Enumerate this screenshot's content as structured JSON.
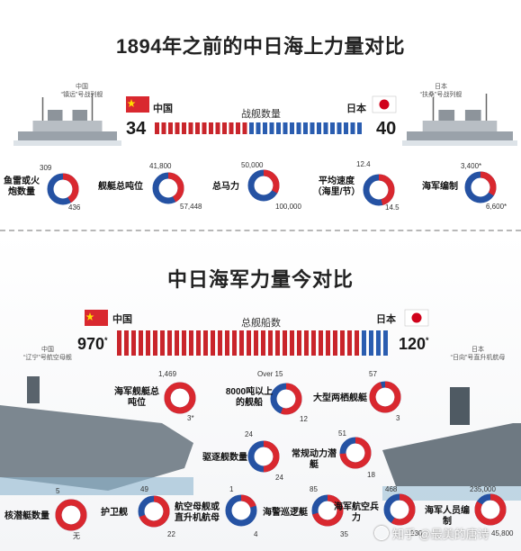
{
  "colors": {
    "china_red": "#d9282f",
    "japan_blue": "#2552a3",
    "bar_red": "#c9252b",
    "bar_blue": "#2a5db0"
  },
  "top_section": {
    "title": "1894年之前的中日海上力量对比",
    "china_ship_caption": [
      "中国",
      "“镇远”号战列舰"
    ],
    "japan_ship_caption": [
      "日本",
      "“扶桑”号战列舰"
    ],
    "china_label": "中国",
    "japan_label": "日本",
    "bar_title": "战舰数量",
    "china_count": "34",
    "japan_count": "40"
  },
  "bottom_section": {
    "title": "中日海军力量今对比",
    "china_ship_caption": [
      "中国",
      "“辽宁”号航空母舰"
    ],
    "japan_ship_caption": [
      "日本",
      "“日向”号直升机航母"
    ],
    "china_label": "中国",
    "japan_label": "日本",
    "bar_title": "总舰船数",
    "china_count": "970",
    "japan_count": "120",
    "china_mark": "*",
    "japan_mark": "*"
  },
  "watermark": "知乎 @最美的唐诗",
  "chart_data": [
    {
      "type": "bar",
      "title": "战舰数量",
      "categories": [
        "中国",
        "日本"
      ],
      "values": [
        34,
        40
      ]
    },
    {
      "type": "pie",
      "panel": "1894",
      "items": [
        {
          "label": "鱼雷或火炮数量",
          "china": 309,
          "japan": 436,
          "china_text": "309",
          "japan_text": "436"
        },
        {
          "label": "舰艇总吨位",
          "china": 41800,
          "japan": 57448,
          "china_text": "41,800",
          "japan_text": "57,448"
        },
        {
          "label": "总马力",
          "china": 50000,
          "japan": 100000,
          "china_text": "50,000",
          "japan_text": "100,000"
        },
        {
          "label": "平均速度（海里/节）",
          "china": 12.4,
          "japan": 14.5,
          "china_text": "12.4",
          "japan_text": "14.5"
        },
        {
          "label": "海军编制",
          "china": 3400,
          "japan": 6600,
          "china_text": "3,400*",
          "japan_text": "6,600*"
        }
      ]
    },
    {
      "type": "bar",
      "title": "总舰船数",
      "categories": [
        "中国",
        "日本"
      ],
      "values": [
        970,
        120
      ]
    },
    {
      "type": "pie",
      "panel": "today",
      "items": [
        {
          "label": "海军舰艇总吨位",
          "china": 1469,
          "japan": 3,
          "china_text": "1,469",
          "japan_text": "3*"
        },
        {
          "label": "8000吨以上的舰船",
          "china": 15,
          "japan": 12,
          "china_text": "Over 15",
          "japan_text": "12"
        },
        {
          "label": "大型两栖舰艇",
          "china": 57,
          "japan": 3,
          "china_text": "57",
          "japan_text": "3"
        },
        {
          "label": "驱逐舰数量",
          "china": 24,
          "japan": 24,
          "china_text": "24",
          "japan_text": "24"
        },
        {
          "label": "常规动力潜艇",
          "china": 51,
          "japan": 18,
          "china_text": "51",
          "japan_text": "18"
        },
        {
          "label": "核潜艇数量",
          "china": 5,
          "japan": 0,
          "china_text": "5",
          "japan_text": "无"
        },
        {
          "label": "护卫舰",
          "china": 49,
          "japan": 22,
          "china_text": "49",
          "japan_text": "22"
        },
        {
          "label": "航空母舰或直升机航母",
          "china": 1,
          "japan": 4,
          "china_text": "1",
          "japan_text": "4"
        },
        {
          "label": "海警巡逻艇",
          "china": 85,
          "japan": 35,
          "china_text": "85",
          "japan_text": "35"
        },
        {
          "label": "海军航空兵力",
          "china": 468,
          "japan": 330,
          "china_text": "468",
          "japan_text": "330"
        },
        {
          "label": "海军人员编制",
          "china": 235000,
          "japan": 45800,
          "china_text": "235,000",
          "japan_text": "45,800"
        }
      ]
    }
  ]
}
